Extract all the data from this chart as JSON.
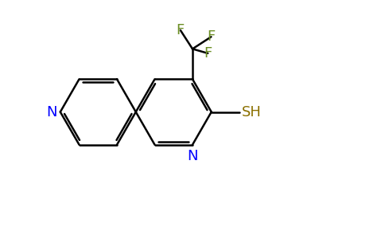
{
  "background_color": "#ffffff",
  "bond_color": "#000000",
  "N_color": "#0000ff",
  "F_color": "#6b8e23",
  "S_color": "#8b7000",
  "bond_width": 1.8,
  "font_size_atoms": 13,
  "fig_width": 4.84,
  "fig_height": 3.0,
  "dpi": 100,
  "xlim": [
    0,
    10
  ],
  "ylim": [
    0,
    6.2
  ]
}
